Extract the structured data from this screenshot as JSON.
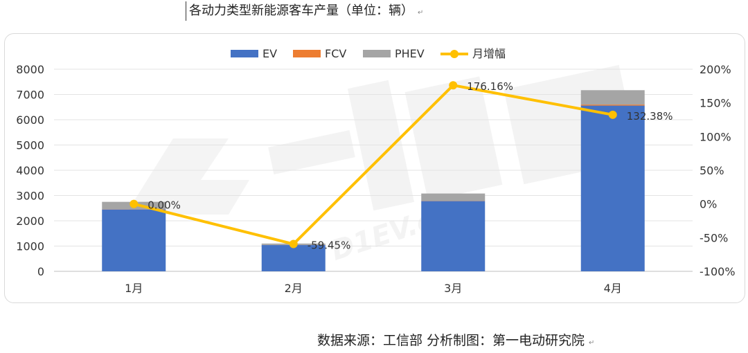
{
  "title": "各动力类型新能源客车产量（单位：辆）",
  "source": "数据来源：工信部  分析制图：第一电动研究院",
  "chart_data": {
    "type": "bar",
    "stacked": true,
    "categories": [
      "1月",
      "2月",
      "3月",
      "4月"
    ],
    "series": [
      {
        "name": "EV",
        "color": "#4472C4",
        "values": [
          2450,
          1040,
          2780,
          6560
        ]
      },
      {
        "name": "FCV",
        "color": "#ED7D31",
        "values": [
          10,
          5,
          10,
          40
        ]
      },
      {
        "name": "PHEV",
        "color": "#A5A5A5",
        "values": [
          290,
          55,
          290,
          570
        ]
      }
    ],
    "line_series": {
      "name": "月增幅",
      "color": "#FFC000",
      "axis": "right",
      "values": [
        0.0,
        -59.45,
        176.16,
        132.38
      ],
      "labels": [
        "0.00%",
        "-59.45%",
        "176.16%",
        "132.38%"
      ]
    },
    "ylim_left": [
      0,
      8000
    ],
    "yticks_left": [
      "0",
      "1000",
      "2000",
      "3000",
      "4000",
      "5000",
      "6000",
      "7000",
      "8000"
    ],
    "ylim_right": [
      -100,
      200
    ],
    "yticks_right": [
      "-100%",
      "-50%",
      "0%",
      "50%",
      "100%",
      "150%",
      "200%"
    ],
    "legend_position": "top",
    "grid": true
  }
}
